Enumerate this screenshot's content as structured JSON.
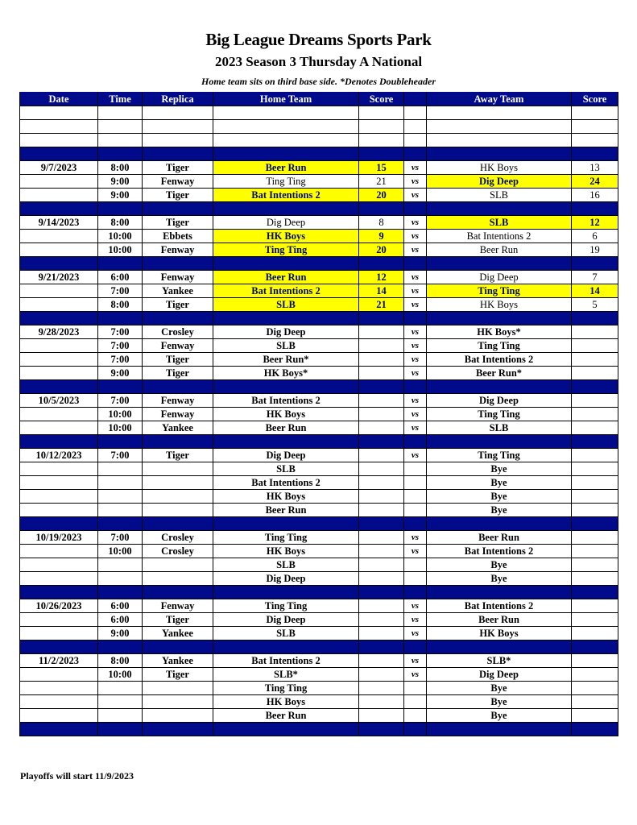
{
  "header": {
    "title": "Big League Dreams Sports Park",
    "subtitle": "2023 Season 3 Thursday A National",
    "note": "Home team sits on third base side.  *Denotes Doubleheader"
  },
  "columns": [
    "Date",
    "Time",
    "Replica",
    "Home Team",
    "Score",
    "",
    "Away Team",
    "Score"
  ],
  "colors": {
    "header_bg": "#000a8a",
    "winner_bg": "#ffff00"
  },
  "vs_label": "vs",
  "blank_rows": 3,
  "weeks": [
    {
      "date": "9/7/2023",
      "games": [
        {
          "time": "8:00",
          "replica": "Tiger",
          "home": "Beer Run",
          "home_score": "15",
          "away": "HK Boys",
          "away_score": "13",
          "winner": "home"
        },
        {
          "time": "9:00",
          "replica": "Fenway",
          "home": "Ting Ting",
          "home_score": "21",
          "away": "Dig Deep",
          "away_score": "24",
          "winner": "away"
        },
        {
          "time": "9:00",
          "replica": "Tiger",
          "home": "Bat Intentions 2",
          "home_score": "20",
          "away": "SLB",
          "away_score": "16",
          "winner": "home"
        }
      ]
    },
    {
      "date": "9/14/2023",
      "games": [
        {
          "time": "8:00",
          "replica": "Tiger",
          "home": "Dig Deep",
          "home_score": "8",
          "away": "SLB",
          "away_score": "12",
          "winner": "away"
        },
        {
          "time": "10:00",
          "replica": "Ebbets",
          "home": "HK Boys",
          "home_score": "9",
          "away": "Bat Intentions 2",
          "away_score": "6",
          "winner": "home"
        },
        {
          "time": "10:00",
          "replica": "Fenway",
          "home": "Ting Ting",
          "home_score": "20",
          "away": "Beer Run",
          "away_score": "19",
          "winner": "home"
        }
      ]
    },
    {
      "date": "9/21/2023",
      "games": [
        {
          "time": "6:00",
          "replica": "Fenway",
          "home": "Beer Run",
          "home_score": "12",
          "away": "Dig Deep",
          "away_score": "7",
          "winner": "home"
        },
        {
          "time": "7:00",
          "replica": "Yankee",
          "home": "Bat Intentions 2",
          "home_score": "14",
          "away": "Ting Ting",
          "away_score": "14",
          "winner": "tie"
        },
        {
          "time": "8:00",
          "replica": "Tiger",
          "home": "SLB",
          "home_score": "21",
          "away": "HK Boys",
          "away_score": "5",
          "winner": "home"
        }
      ]
    },
    {
      "date": "9/28/2023",
      "games": [
        {
          "time": "7:00",
          "replica": "Crosley",
          "home": "Dig Deep",
          "away": "HK Boys*"
        },
        {
          "time": "7:00",
          "replica": "Fenway",
          "home": "SLB",
          "away": "Ting Ting"
        },
        {
          "time": "7:00",
          "replica": "Tiger",
          "home": "Beer Run*",
          "away": "Bat Intentions 2"
        },
        {
          "time": "9:00",
          "replica": "Tiger",
          "home": "HK Boys*",
          "away": "Beer Run*"
        }
      ]
    },
    {
      "date": "10/5/2023",
      "games": [
        {
          "time": "7:00",
          "replica": "Fenway",
          "home": "Bat Intentions 2",
          "away": "Dig Deep"
        },
        {
          "time": "10:00",
          "replica": "Fenway",
          "home": "HK Boys",
          "away": "Ting Ting"
        },
        {
          "time": "10:00",
          "replica": "Yankee",
          "home": "Beer Run",
          "away": "SLB"
        }
      ]
    },
    {
      "date": "10/12/2023",
      "games": [
        {
          "time": "7:00",
          "replica": "Tiger",
          "home": "Dig Deep",
          "away": "Ting Ting"
        },
        {
          "home": "SLB",
          "away": "Bye",
          "bye": true
        },
        {
          "home": "Bat Intentions 2",
          "away": "Bye",
          "bye": true
        },
        {
          "home": "HK Boys",
          "away": "Bye",
          "bye": true
        },
        {
          "home": "Beer Run",
          "away": "Bye",
          "bye": true
        }
      ]
    },
    {
      "date": "10/19/2023",
      "games": [
        {
          "time": "7:00",
          "replica": "Crosley",
          "home": "Ting Ting",
          "away": "Beer Run"
        },
        {
          "time": "10:00",
          "replica": "Crosley",
          "home": "HK Boys",
          "away": "Bat Intentions 2"
        },
        {
          "home": "SLB",
          "away": "Bye",
          "bye": true
        },
        {
          "home": "Dig Deep",
          "away": "Bye",
          "bye": true
        }
      ]
    },
    {
      "date": "10/26/2023",
      "games": [
        {
          "time": "6:00",
          "replica": "Fenway",
          "home": "Ting Ting",
          "away": "Bat Intentions 2"
        },
        {
          "time": "6:00",
          "replica": "Tiger",
          "home": "Dig Deep",
          "away": "Beer Run"
        },
        {
          "time": "9:00",
          "replica": "Yankee",
          "home": "SLB",
          "away": "HK Boys"
        }
      ]
    },
    {
      "date": "11/2/2023",
      "games": [
        {
          "time": "8:00",
          "replica": "Yankee",
          "home": "Bat Intentions 2",
          "away": "SLB*"
        },
        {
          "time": "10:00",
          "replica": "Tiger",
          "home": "SLB*",
          "away": "Dig Deep"
        },
        {
          "home": "Ting Ting",
          "away": "Bye",
          "bye": true
        },
        {
          "home": "HK Boys",
          "away": "Bye",
          "bye": true
        },
        {
          "home": "Beer Run",
          "away": "Bye",
          "bye": true
        }
      ]
    }
  ],
  "footer": "Playoffs will start 11/9/2023"
}
